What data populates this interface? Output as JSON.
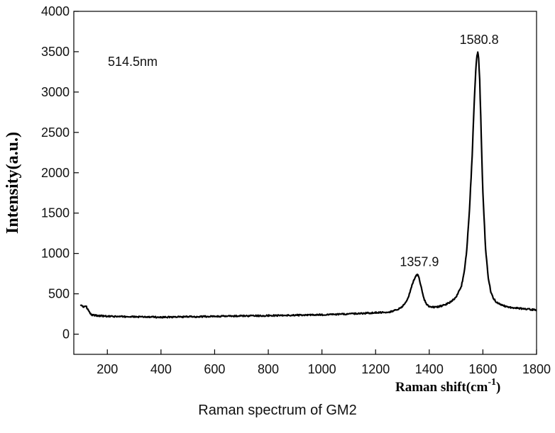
{
  "chart_data": {
    "type": "line",
    "title": "",
    "xlabel": "Raman shift(cm",
    "xlabel_sup": "-1",
    "xlabel_close": ")",
    "ylabel": "Intensity(a.u.)",
    "xlim": [
      75,
      1800
    ],
    "ylim": [
      -250,
      4000
    ],
    "x_ticks": [
      200,
      400,
      600,
      800,
      1000,
      1200,
      1400,
      1600,
      1800
    ],
    "y_ticks": [
      0,
      500,
      1000,
      1500,
      2000,
      2500,
      3000,
      3500,
      4000
    ],
    "grid": false,
    "legend": "none",
    "inset_label": "514.5nm",
    "peaks": [
      {
        "x": 1357.9,
        "y": 740,
        "label": "1357.9"
      },
      {
        "x": 1580.8,
        "y": 3490,
        "label": "1580.8"
      }
    ],
    "series": [
      {
        "color": "#000000",
        "x": [
          100,
          110,
          120,
          130,
          140,
          160,
          200,
          300,
          400,
          500,
          600,
          700,
          800,
          900,
          1000,
          1100,
          1150,
          1200,
          1250,
          1280,
          1300,
          1320,
          1330,
          1340,
          1350,
          1355,
          1358,
          1362,
          1370,
          1380,
          1390,
          1400,
          1420,
          1440,
          1460,
          1480,
          1500,
          1520,
          1530,
          1540,
          1550,
          1560,
          1565,
          1570,
          1575,
          1578,
          1581,
          1584,
          1588,
          1592,
          1596,
          1600,
          1610,
          1620,
          1630,
          1640,
          1650,
          1670,
          1700,
          1750,
          1800
        ],
        "y": [
          370,
          340,
          350,
          290,
          240,
          230,
          220,
          215,
          210,
          215,
          220,
          225,
          230,
          235,
          240,
          250,
          258,
          265,
          275,
          300,
          340,
          440,
          540,
          650,
          720,
          740,
          735,
          700,
          580,
          440,
          370,
          340,
          335,
          345,
          365,
          400,
          460,
          600,
          760,
          1050,
          1550,
          2200,
          2650,
          3050,
          3350,
          3460,
          3490,
          3420,
          3150,
          2700,
          2200,
          1750,
          1050,
          700,
          520,
          440,
          400,
          360,
          330,
          315,
          300
        ]
      }
    ]
  },
  "caption": "Raman spectrum of GM2"
}
